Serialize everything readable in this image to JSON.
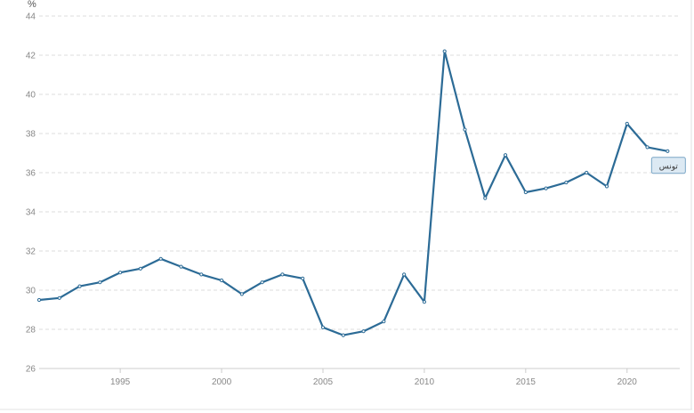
{
  "chart_data": {
    "type": "line",
    "y_unit": "%",
    "ylim": [
      26,
      44
    ],
    "y_ticks": [
      26,
      28,
      30,
      32,
      34,
      36,
      38,
      40,
      42,
      44
    ],
    "xlim": [
      1991,
      2022.6
    ],
    "x_ticks": [
      1995,
      2000,
      2005,
      2010,
      2015,
      2020
    ],
    "grid": true,
    "colors": {
      "series": "#2c6b96"
    },
    "series": [
      {
        "name": "تونس",
        "x": [
          1991,
          1992,
          1993,
          1994,
          1995,
          1996,
          1997,
          1998,
          1999,
          2000,
          2001,
          2002,
          2003,
          2004,
          2005,
          2006,
          2007,
          2008,
          2009,
          2010,
          2011,
          2012,
          2013,
          2014,
          2015,
          2016,
          2017,
          2018,
          2019,
          2020,
          2021,
          2022
        ],
        "values": [
          29.5,
          29.6,
          30.2,
          30.4,
          30.9,
          31.1,
          31.6,
          31.2,
          30.8,
          30.5,
          29.8,
          30.4,
          30.8,
          30.6,
          28.1,
          27.7,
          27.9,
          28.4,
          30.8,
          29.4,
          42.2,
          38.2,
          34.7,
          36.9,
          35.0,
          35.2,
          35.5,
          36.0,
          35.3,
          38.5,
          37.3,
          37.1
        ]
      }
    ]
  }
}
